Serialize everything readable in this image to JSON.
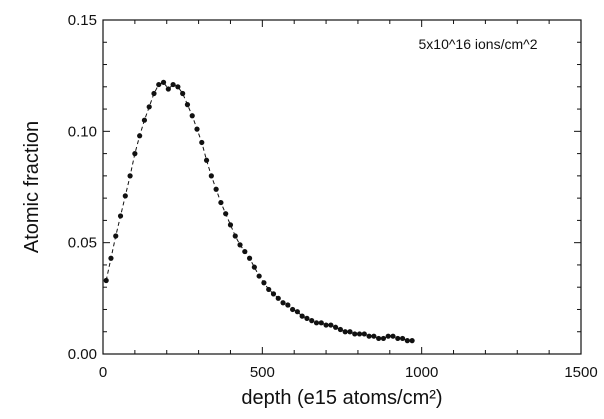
{
  "chart_data": {
    "type": "scatter",
    "title": "",
    "xlabel": "depth (e15 atoms/cm²)",
    "ylabel": "Atomic fraction",
    "annotation": "5x10^16 ions/cm^2",
    "xlim": [
      0,
      1500
    ],
    "ylim": [
      0,
      0.15
    ],
    "xticks": [
      0,
      500,
      1000,
      1500
    ],
    "yticks": [
      0.0,
      0.05,
      0.1,
      0.15
    ],
    "xtick_labels": [
      "0",
      "500",
      "1000",
      "1500"
    ],
    "ytick_labels": [
      "0.00",
      "0.05",
      "0.10",
      "0.15"
    ],
    "grid": false,
    "legend": "none",
    "colors": {
      "points": "#111111",
      "line": "#111111",
      "axes": "#111111"
    },
    "series": [
      {
        "line_style": "dashed",
        "marker": "circle",
        "x": [
          10,
          25,
          40,
          55,
          70,
          85,
          100,
          115,
          130,
          145,
          160,
          175,
          190,
          205,
          220,
          235,
          250,
          265,
          280,
          295,
          310,
          325,
          340,
          355,
          370,
          385,
          400,
          415,
          430,
          445,
          460,
          475,
          490,
          505,
          520,
          535,
          550,
          565,
          580,
          595,
          610,
          625,
          640,
          655,
          670,
          685,
          700,
          715,
          730,
          745,
          760,
          775,
          790,
          805,
          820,
          835,
          850,
          865,
          880,
          895,
          910,
          925,
          940,
          955,
          970
        ],
        "y": [
          0.033,
          0.043,
          0.053,
          0.062,
          0.071,
          0.08,
          0.09,
          0.098,
          0.105,
          0.111,
          0.117,
          0.121,
          0.122,
          0.119,
          0.121,
          0.12,
          0.117,
          0.112,
          0.107,
          0.101,
          0.095,
          0.087,
          0.08,
          0.074,
          0.068,
          0.063,
          0.058,
          0.053,
          0.049,
          0.046,
          0.043,
          0.039,
          0.035,
          0.032,
          0.029,
          0.027,
          0.025,
          0.023,
          0.022,
          0.02,
          0.019,
          0.017,
          0.016,
          0.015,
          0.014,
          0.014,
          0.013,
          0.013,
          0.012,
          0.011,
          0.01,
          0.01,
          0.009,
          0.009,
          0.009,
          0.008,
          0.008,
          0.007,
          0.007,
          0.008,
          0.008,
          0.007,
          0.007,
          0.006,
          0.006
        ]
      }
    ]
  }
}
